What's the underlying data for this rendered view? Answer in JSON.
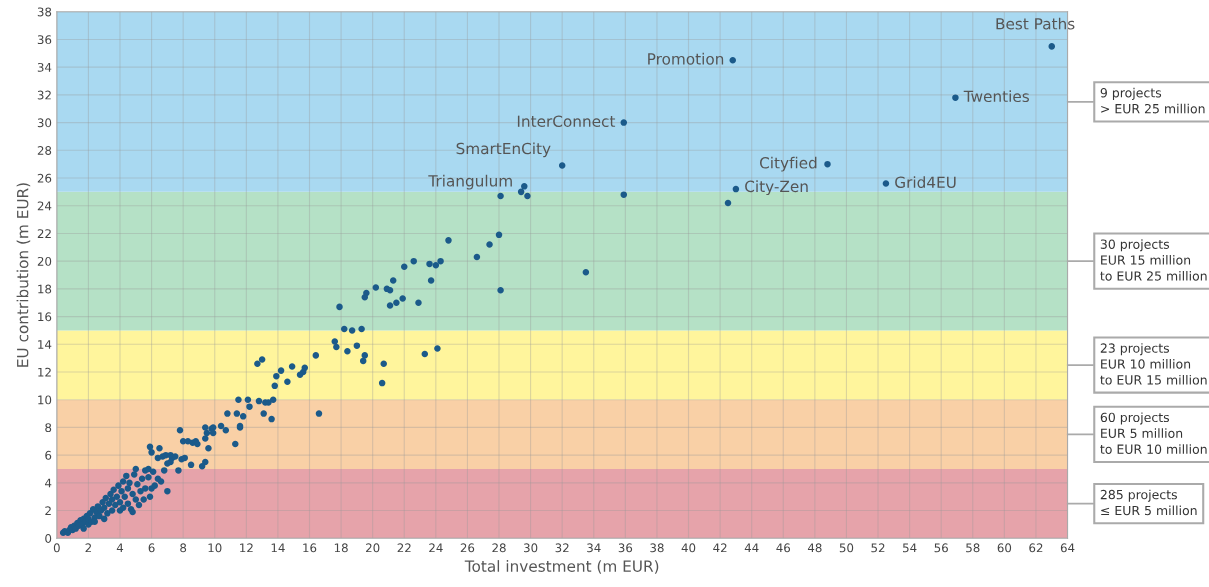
{
  "chart_data": {
    "type": "scatter",
    "xlabel": "Total investment (m EUR)",
    "ylabel": "EU contribution (m EUR)",
    "xlim": [
      0,
      64
    ],
    "xticks": [
      0,
      2,
      4,
      6,
      8,
      10,
      12,
      14,
      16,
      18,
      20,
      22,
      24,
      26,
      28,
      30,
      32,
      34,
      36,
      38,
      40,
      42,
      44,
      46,
      48,
      50,
      52,
      54,
      56,
      58,
      60,
      62,
      64
    ],
    "ylim": [
      0,
      38
    ],
    "yticks": [
      0,
      2,
      4,
      6,
      8,
      10,
      12,
      14,
      16,
      18,
      20,
      22,
      24,
      26,
      28,
      30,
      32,
      34,
      36,
      38
    ],
    "grid": true,
    "marker": "circle",
    "series": [
      {
        "color": "#1b5a8a",
        "x": [
          63.0,
          42.8,
          56.9,
          35.9,
          32.0,
          48.8,
          43.0,
          52.5,
          29.6,
          29.4,
          29.8,
          28.1,
          35.9,
          42.5,
          28.0,
          24.8,
          27.4,
          26.6,
          22.6,
          22.0,
          23.6,
          24.0,
          24.3,
          23.7,
          33.5,
          28.1,
          21.3,
          20.2,
          20.9,
          21.1,
          19.6,
          19.5,
          21.9,
          21.5,
          21.1,
          22.9,
          17.9,
          18.2,
          18.7,
          19.3,
          17.6,
          17.7,
          18.4,
          19.0,
          19.5,
          19.4,
          20.7,
          20.6,
          23.3,
          24.1,
          16.4,
          12.7,
          13.0,
          14.9,
          14.2,
          13.9,
          15.7,
          15.6,
          15.4,
          14.6,
          13.8,
          11.5,
          12.1,
          12.8,
          13.2,
          13.4,
          13.7,
          12.2,
          11.4,
          11.8,
          13.1,
          13.6,
          16.6,
          11.6,
          11.3,
          7.8,
          8.0,
          8.3,
          8.6,
          8.8,
          8.9,
          8.5,
          7.9,
          8.1,
          9.2,
          9.4,
          9.6,
          9.4,
          9.5,
          9.4,
          9.8,
          9.9,
          9.9,
          10.4,
          10.7,
          10.8,
          11.6,
          5.9,
          6.5,
          6.0,
          6.4,
          6.7,
          6.9,
          7.2,
          7.3,
          7.5,
          7.2,
          7.0,
          0.4,
          0.5,
          0.7,
          0.8,
          0.9,
          1.0,
          1.1,
          1.2,
          1.3,
          1.4,
          1.5,
          1.6,
          1.7,
          1.7,
          1.8,
          1.9,
          2.0,
          2.0,
          2.1,
          2.2,
          2.3,
          2.4,
          2.4,
          2.5,
          2.6,
          2.7,
          2.8,
          2.9,
          3.0,
          3.0,
          3.1,
          3.2,
          3.3,
          3.4,
          3.5,
          3.5,
          3.6,
          3.7,
          3.8,
          3.9,
          4.0,
          4.0,
          4.1,
          4.2,
          4.2,
          4.3,
          4.4,
          4.5,
          4.5,
          4.6,
          4.7,
          4.8,
          4.8,
          4.9,
          5.0,
          5.0,
          5.1,
          5.2,
          5.3,
          5.4,
          5.5,
          5.6,
          5.8,
          5.9,
          6.0,
          6.1,
          6.2,
          6.4,
          6.6,
          7.0,
          5.6,
          5.8,
          7.7,
          6.8
        ],
        "values": [
          35.5,
          34.5,
          31.8,
          30.0,
          26.9,
          27.0,
          25.2,
          25.6,
          25.4,
          25.0,
          24.7,
          24.7,
          24.8,
          24.2,
          21.9,
          21.5,
          21.2,
          20.3,
          20.0,
          19.6,
          19.8,
          19.7,
          20.0,
          18.6,
          19.2,
          17.9,
          18.6,
          18.1,
          18.0,
          17.9,
          17.7,
          17.4,
          17.3,
          17.0,
          16.8,
          17.0,
          16.7,
          15.1,
          15.0,
          15.1,
          14.2,
          13.8,
          13.5,
          13.9,
          13.2,
          12.8,
          12.6,
          11.2,
          13.3,
          13.7,
          13.2,
          12.6,
          12.9,
          12.4,
          12.1,
          11.7,
          12.3,
          12.0,
          11.8,
          11.3,
          11.0,
          10.0,
          10.0,
          9.9,
          9.8,
          9.8,
          10.0,
          9.5,
          9.0,
          8.8,
          9.0,
          8.6,
          9.0,
          8.0,
          6.8,
          7.8,
          7.0,
          7.0,
          6.9,
          7.0,
          6.8,
          5.3,
          5.7,
          5.8,
          5.2,
          5.5,
          6.5,
          7.2,
          7.6,
          8.0,
          7.9,
          8.0,
          7.6,
          8.1,
          7.8,
          9.0,
          8.1,
          6.6,
          6.5,
          6.2,
          5.8,
          5.9,
          6.0,
          6.0,
          5.8,
          5.9,
          5.5,
          5.4,
          0.4,
          0.5,
          0.4,
          0.6,
          0.8,
          0.6,
          0.9,
          0.7,
          1.1,
          0.9,
          1.3,
          1.0,
          0.7,
          1.4,
          1.2,
          1.6,
          1.0,
          1.4,
          1.8,
          1.2,
          2.1,
          1.5,
          1.2,
          1.9,
          2.3,
          1.6,
          2.0,
          2.6,
          1.4,
          2.2,
          2.9,
          1.8,
          2.5,
          3.2,
          2.0,
          2.8,
          3.5,
          2.4,
          3.0,
          3.8,
          2.0,
          2.6,
          3.4,
          4.1,
          2.2,
          3.0,
          4.5,
          2.5,
          3.6,
          4.0,
          2.1,
          1.9,
          3.2,
          4.6,
          5.0,
          2.8,
          3.9,
          2.4,
          3.4,
          4.3,
          2.8,
          3.6,
          4.4,
          3.0,
          3.6,
          4.8,
          3.8,
          4.3,
          4.1,
          3.4,
          4.9,
          5.0,
          4.9,
          4.9
        ]
      }
    ],
    "bands": [
      {
        "axis": "y",
        "from": 0,
        "to": 5,
        "color": "#e6a3aa",
        "label": "285 projects\n≤ EUR 5 million"
      },
      {
        "axis": "y",
        "from": 5,
        "to": 10,
        "color": "#f9d0a6",
        "label": "60 projects\nEUR 5 million\nto EUR 10 million"
      },
      {
        "axis": "y",
        "from": 10,
        "to": 15,
        "color": "#fff59c",
        "label": "23 projects\nEUR 10 million\nto EUR 15 million"
      },
      {
        "axis": "y",
        "from": 15,
        "to": 25,
        "color": "#b5e1c6",
        "label": "30 projects\nEUR 15 million\nto EUR 25 million"
      },
      {
        "axis": "y",
        "from": 25,
        "to": 38,
        "color": "#a9d9f1",
        "label": "9 projects\n> EUR 25 million"
      }
    ],
    "annotations": [
      {
        "text": "Best Paths",
        "x": 63.0,
        "y": 35.5
      },
      {
        "text": "Promotion",
        "x": 42.8,
        "y": 34.5
      },
      {
        "text": "Twenties",
        "x": 56.9,
        "y": 31.8
      },
      {
        "text": "InterConnect",
        "x": 35.9,
        "y": 30.0
      },
      {
        "text": "SmartEnCity",
        "x": 32.0,
        "y": 26.9
      },
      {
        "text": "Cityfied",
        "x": 48.8,
        "y": 27.0
      },
      {
        "text": "City-Zen",
        "x": 43.0,
        "y": 25.2
      },
      {
        "text": "Grid4EU",
        "x": 52.5,
        "y": 25.6
      },
      {
        "text": "Triangulum",
        "x": 29.6,
        "y": 25.4
      }
    ]
  }
}
